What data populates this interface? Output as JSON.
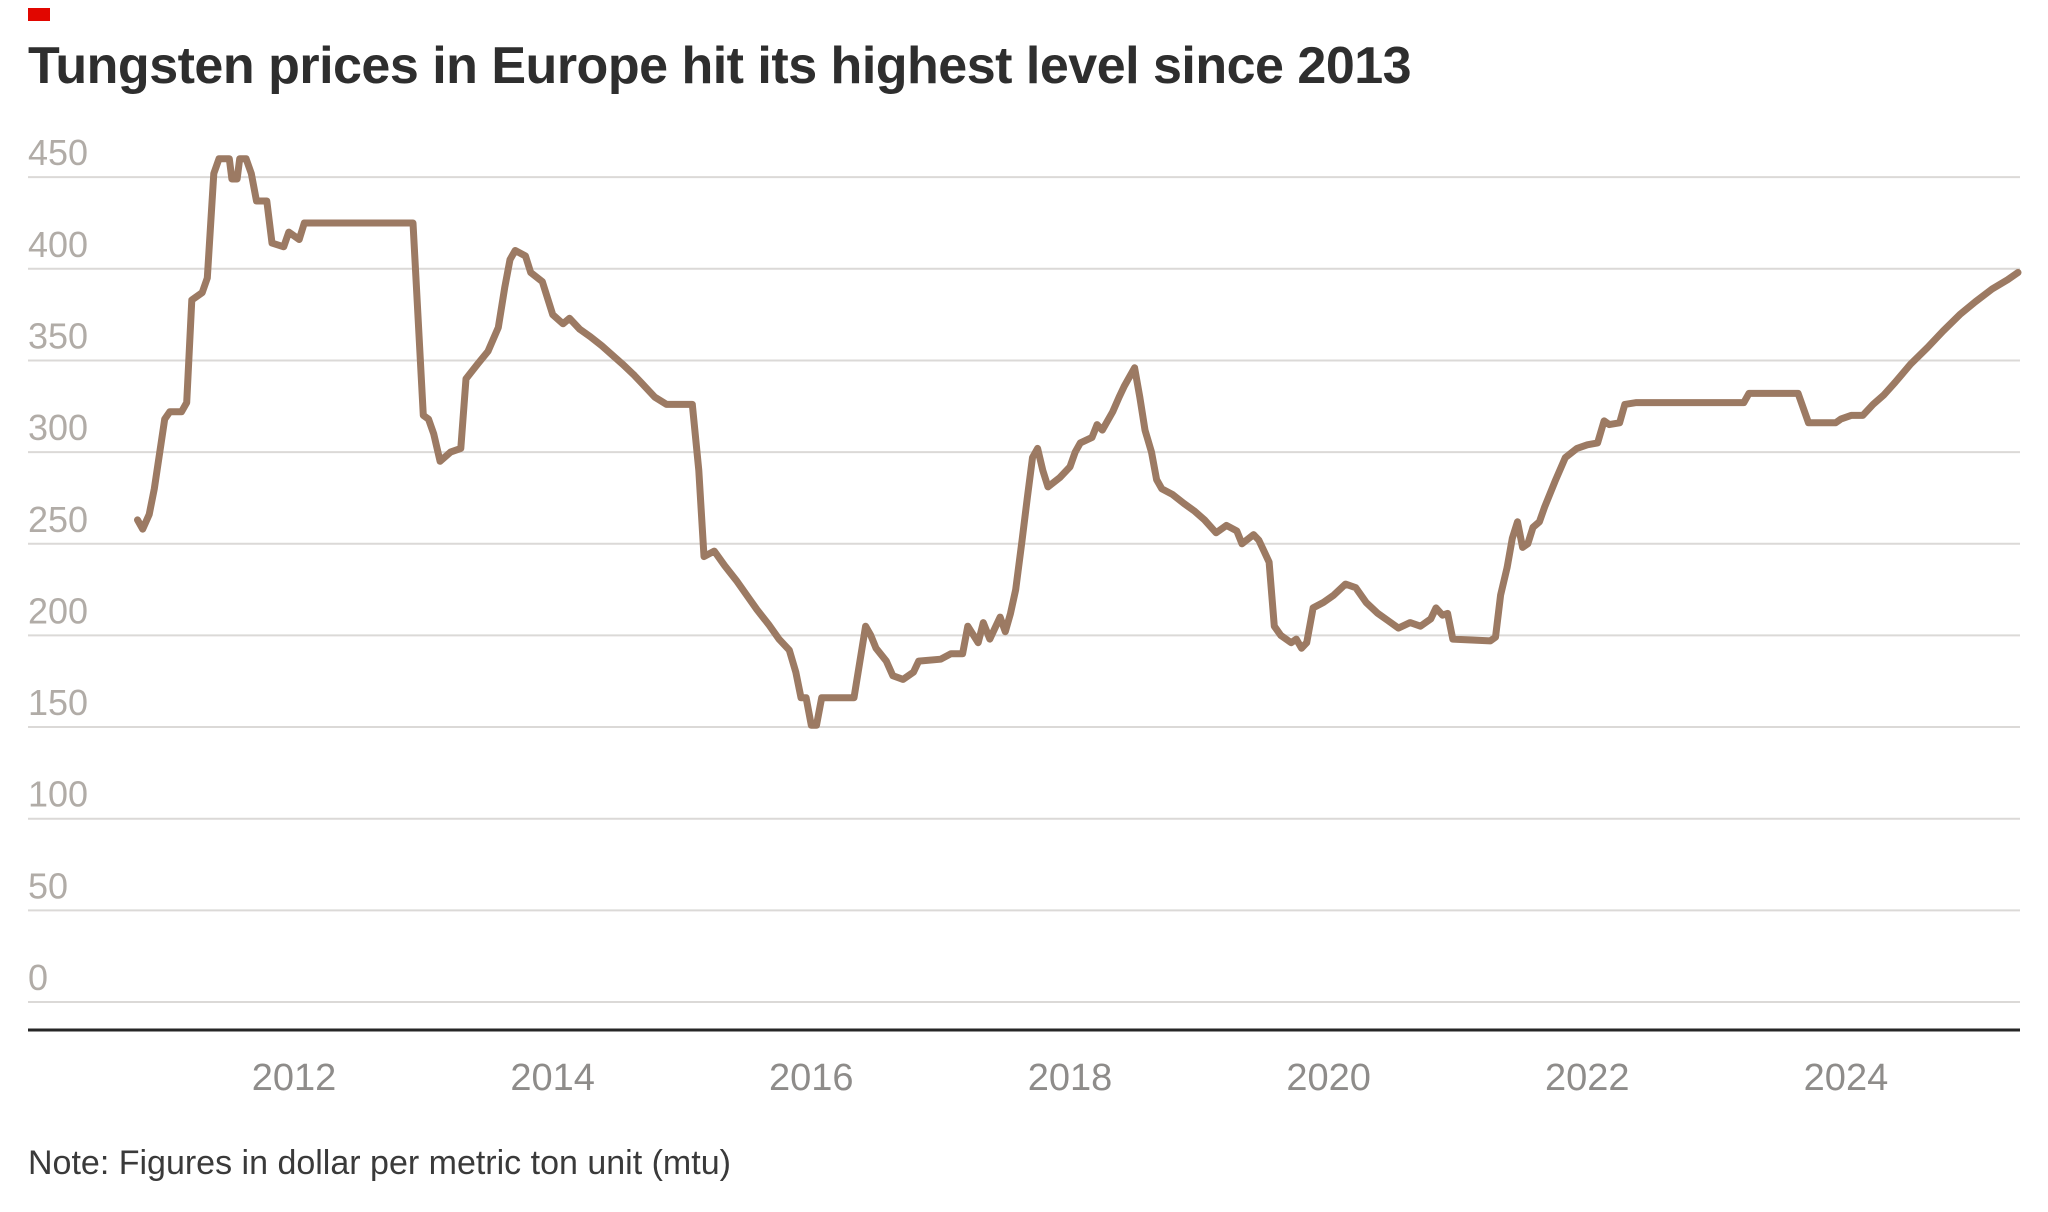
{
  "brand": {
    "accent_color": "#e10600"
  },
  "chart_data": {
    "type": "line",
    "title": "Tungsten prices in Europe hit its highest level since 2013",
    "note": "Note: Figures in dollar per metric ton unit (mtu)",
    "unit": "dollar per metric ton unit (mtu)",
    "xlabel": "",
    "ylabel": "",
    "line_color": "#9c7a63",
    "grid_color": "#dbd9d7",
    "axis_color": "#262626",
    "ylim": [
      0,
      475
    ],
    "xlim": [
      2010.6,
      2025.5
    ],
    "yticks": [
      0,
      50,
      100,
      150,
      200,
      250,
      300,
      350,
      400,
      450
    ],
    "xticks": [
      2012,
      2014,
      2016,
      2018,
      2020,
      2022,
      2024
    ],
    "layout": {
      "grid": true,
      "legend": false
    },
    "series": [
      {
        "name": "Tungsten price (Europe)",
        "points": [
          [
            2010.79,
            263
          ],
          [
            2010.83,
            258
          ],
          [
            2010.88,
            266
          ],
          [
            2010.92,
            280
          ],
          [
            2011.0,
            318
          ],
          [
            2011.04,
            322
          ],
          [
            2011.13,
            322
          ],
          [
            2011.17,
            327
          ],
          [
            2011.21,
            383
          ],
          [
            2011.29,
            387
          ],
          [
            2011.33,
            395
          ],
          [
            2011.38,
            452
          ],
          [
            2011.42,
            460
          ],
          [
            2011.5,
            460
          ],
          [
            2011.52,
            449
          ],
          [
            2011.56,
            449
          ],
          [
            2011.58,
            460
          ],
          [
            2011.63,
            460
          ],
          [
            2011.67,
            452
          ],
          [
            2011.71,
            437
          ],
          [
            2011.79,
            437
          ],
          [
            2011.83,
            414
          ],
          [
            2011.92,
            412
          ],
          [
            2011.96,
            420
          ],
          [
            2012.04,
            416
          ],
          [
            2012.08,
            425
          ],
          [
            2012.92,
            425
          ],
          [
            2013.0,
            320
          ],
          [
            2013.04,
            318
          ],
          [
            2013.08,
            310
          ],
          [
            2013.13,
            295
          ],
          [
            2013.21,
            300
          ],
          [
            2013.29,
            302
          ],
          [
            2013.33,
            340
          ],
          [
            2013.42,
            348
          ],
          [
            2013.5,
            355
          ],
          [
            2013.58,
            368
          ],
          [
            2013.63,
            390
          ],
          [
            2013.67,
            405
          ],
          [
            2013.71,
            410
          ],
          [
            2013.79,
            407
          ],
          [
            2013.83,
            398
          ],
          [
            2013.92,
            393
          ],
          [
            2014.0,
            375
          ],
          [
            2014.08,
            370
          ],
          [
            2014.13,
            373
          ],
          [
            2014.21,
            367
          ],
          [
            2014.29,
            363
          ],
          [
            2014.38,
            358
          ],
          [
            2014.46,
            353
          ],
          [
            2014.54,
            348
          ],
          [
            2014.63,
            342
          ],
          [
            2014.71,
            336
          ],
          [
            2014.79,
            330
          ],
          [
            2014.88,
            326
          ],
          [
            2015.08,
            326
          ],
          [
            2015.13,
            290
          ],
          [
            2015.17,
            243
          ],
          [
            2015.25,
            246
          ],
          [
            2015.33,
            238
          ],
          [
            2015.42,
            230
          ],
          [
            2015.5,
            222
          ],
          [
            2015.58,
            214
          ],
          [
            2015.67,
            206
          ],
          [
            2015.75,
            198
          ],
          [
            2015.83,
            192
          ],
          [
            2015.88,
            180
          ],
          [
            2015.92,
            166
          ],
          [
            2015.96,
            166
          ],
          [
            2016.0,
            151
          ],
          [
            2016.04,
            151
          ],
          [
            2016.08,
            166
          ],
          [
            2016.33,
            166
          ],
          [
            2016.42,
            205
          ],
          [
            2016.46,
            200
          ],
          [
            2016.5,
            193
          ],
          [
            2016.58,
            186
          ],
          [
            2016.63,
            178
          ],
          [
            2016.71,
            176
          ],
          [
            2016.79,
            180
          ],
          [
            2016.83,
            186
          ],
          [
            2017.0,
            187
          ],
          [
            2017.08,
            190
          ],
          [
            2017.17,
            190
          ],
          [
            2017.21,
            205
          ],
          [
            2017.29,
            196
          ],
          [
            2017.33,
            207
          ],
          [
            2017.38,
            198
          ],
          [
            2017.46,
            210
          ],
          [
            2017.5,
            202
          ],
          [
            2017.54,
            212
          ],
          [
            2017.58,
            225
          ],
          [
            2017.63,
            252
          ],
          [
            2017.67,
            275
          ],
          [
            2017.71,
            297
          ],
          [
            2017.75,
            302
          ],
          [
            2017.79,
            290
          ],
          [
            2017.83,
            281
          ],
          [
            2017.92,
            286
          ],
          [
            2018.0,
            292
          ],
          [
            2018.04,
            300
          ],
          [
            2018.08,
            305
          ],
          [
            2018.17,
            308
          ],
          [
            2018.21,
            315
          ],
          [
            2018.25,
            312
          ],
          [
            2018.33,
            322
          ],
          [
            2018.38,
            330
          ],
          [
            2018.42,
            336
          ],
          [
            2018.46,
            341
          ],
          [
            2018.5,
            346
          ],
          [
            2018.54,
            330
          ],
          [
            2018.58,
            312
          ],
          [
            2018.63,
            300
          ],
          [
            2018.67,
            285
          ],
          [
            2018.71,
            280
          ],
          [
            2018.79,
            277
          ],
          [
            2018.88,
            272
          ],
          [
            2018.96,
            268
          ],
          [
            2019.04,
            263
          ],
          [
            2019.13,
            256
          ],
          [
            2019.21,
            260
          ],
          [
            2019.29,
            257
          ],
          [
            2019.33,
            250
          ],
          [
            2019.42,
            255
          ],
          [
            2019.46,
            252
          ],
          [
            2019.5,
            246
          ],
          [
            2019.54,
            240
          ],
          [
            2019.58,
            205
          ],
          [
            2019.63,
            200
          ],
          [
            2019.71,
            196
          ],
          [
            2019.75,
            198
          ],
          [
            2019.79,
            193
          ],
          [
            2019.83,
            196
          ],
          [
            2019.88,
            215
          ],
          [
            2019.96,
            218
          ],
          [
            2020.04,
            222
          ],
          [
            2020.13,
            228
          ],
          [
            2020.21,
            226
          ],
          [
            2020.29,
            218
          ],
          [
            2020.38,
            212
          ],
          [
            2020.46,
            208
          ],
          [
            2020.54,
            204
          ],
          [
            2020.63,
            207
          ],
          [
            2020.71,
            205
          ],
          [
            2020.79,
            209
          ],
          [
            2020.83,
            215
          ],
          [
            2020.88,
            211
          ],
          [
            2020.92,
            212
          ],
          [
            2020.96,
            198
          ],
          [
            2021.25,
            197
          ],
          [
            2021.29,
            199
          ],
          [
            2021.33,
            222
          ],
          [
            2021.38,
            237
          ],
          [
            2021.42,
            253
          ],
          [
            2021.46,
            262
          ],
          [
            2021.5,
            248
          ],
          [
            2021.54,
            250
          ],
          [
            2021.58,
            259
          ],
          [
            2021.63,
            262
          ],
          [
            2021.67,
            270
          ],
          [
            2021.75,
            284
          ],
          [
            2021.83,
            297
          ],
          [
            2021.92,
            302
          ],
          [
            2022.0,
            304
          ],
          [
            2022.08,
            305
          ],
          [
            2022.13,
            317
          ],
          [
            2022.17,
            315
          ],
          [
            2022.25,
            316
          ],
          [
            2022.29,
            326
          ],
          [
            2022.38,
            327
          ],
          [
            2023.21,
            327
          ],
          [
            2023.25,
            332
          ],
          [
            2023.63,
            332
          ],
          [
            2023.71,
            316
          ],
          [
            2023.92,
            316
          ],
          [
            2023.96,
            318
          ],
          [
            2024.04,
            320
          ],
          [
            2024.13,
            320
          ],
          [
            2024.21,
            326
          ],
          [
            2024.29,
            331
          ],
          [
            2024.38,
            338
          ],
          [
            2024.5,
            348
          ],
          [
            2024.63,
            357
          ],
          [
            2024.75,
            366
          ],
          [
            2024.88,
            375
          ],
          [
            2025.0,
            382
          ],
          [
            2025.13,
            389
          ],
          [
            2025.25,
            394
          ],
          [
            2025.33,
            398
          ]
        ]
      }
    ]
  }
}
